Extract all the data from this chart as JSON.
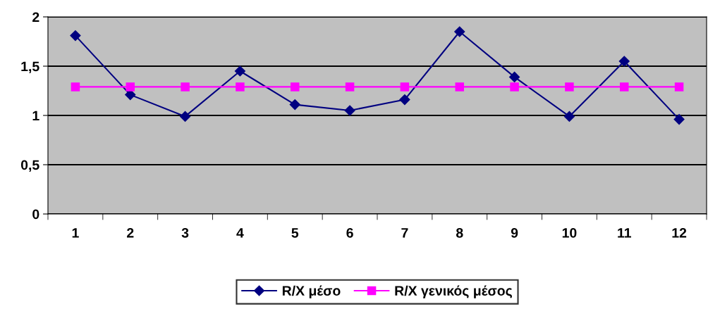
{
  "chart_data": {
    "type": "line",
    "categories": [
      "1",
      "2",
      "3",
      "4",
      "5",
      "6",
      "7",
      "8",
      "9",
      "10",
      "11",
      "12"
    ],
    "series": [
      {
        "name": "R/X μέσο",
        "color": "#000080",
        "marker": "diamond",
        "values": [
          1.81,
          1.21,
          0.99,
          1.45,
          1.11,
          1.05,
          1.16,
          1.85,
          1.39,
          0.99,
          1.55,
          0.96
        ]
      },
      {
        "name": "R/X γενικός μέσος",
        "color": "#ff00ff",
        "marker": "square",
        "values": [
          1.29,
          1.29,
          1.29,
          1.29,
          1.29,
          1.29,
          1.29,
          1.29,
          1.29,
          1.29,
          1.29,
          1.29
        ]
      }
    ],
    "ylim": [
      0,
      2
    ],
    "yticks": [
      0,
      {
        "value": 0.5,
        "label": "0,5"
      },
      1,
      {
        "value": 1.5,
        "label": "1,5"
      },
      2
    ],
    "grid": "y",
    "legend": "bottom"
  }
}
